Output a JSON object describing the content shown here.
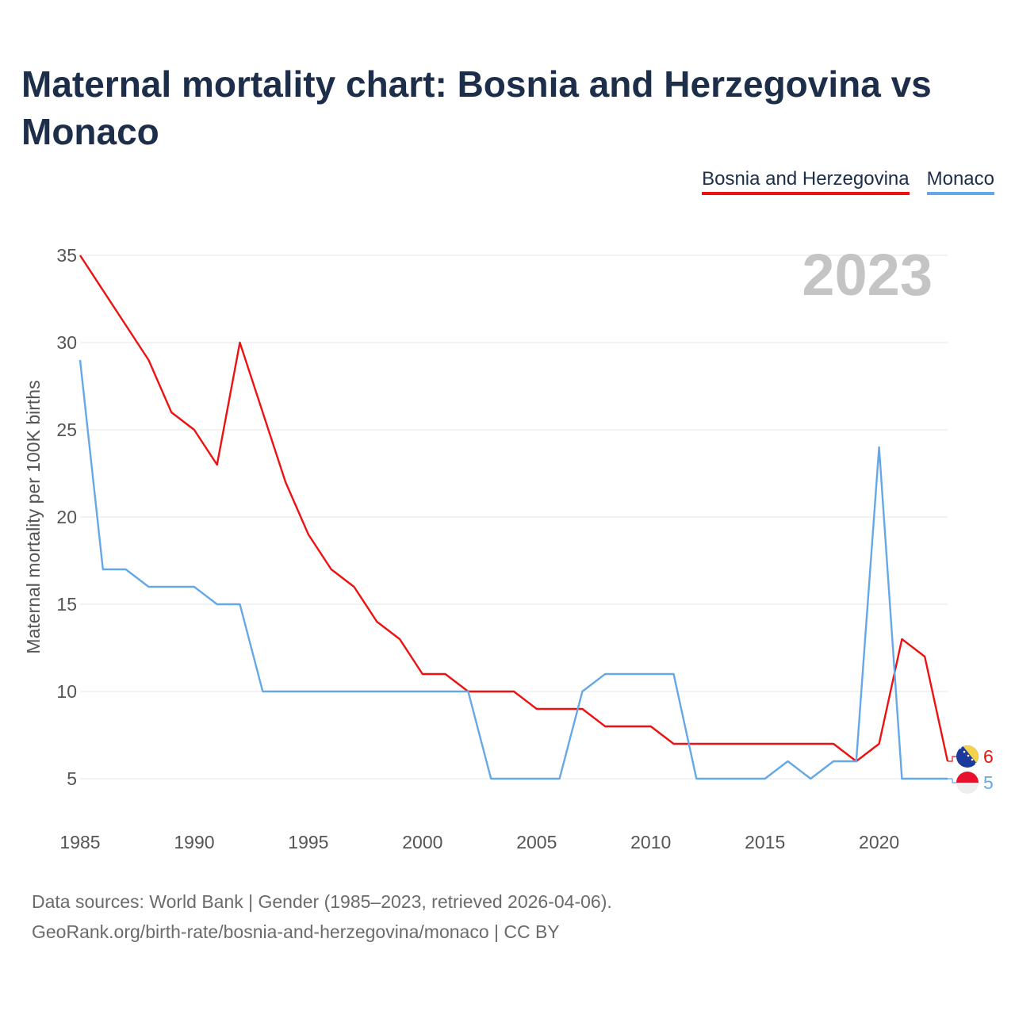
{
  "title": "Maternal mortality chart: Bosnia and Herzegovina vs Monaco",
  "legend": {
    "bih": "Bosnia and Herzegovina",
    "mco": "Monaco"
  },
  "colors": {
    "bih": "#ee1111",
    "mco": "#64a8e8",
    "grid": "#e6e6e6",
    "axis_text": "#555555",
    "year_watermark": "#c4c4c4"
  },
  "footer": {
    "line1": "Data sources: World Bank | Gender (1985–2023, retrieved 2026-04-06).",
    "line2": "GeoRank.org/birth-rate/bosnia-and-herzegovina/monaco | CC BY"
  },
  "chart_data": {
    "type": "line",
    "title": "Maternal mortality chart: Bosnia and Herzegovina vs Monaco",
    "ylabel": "Maternal mortality per 100K births",
    "xlabel": "",
    "year_label": "2023",
    "x": [
      1985,
      1986,
      1987,
      1988,
      1989,
      1990,
      1991,
      1992,
      1993,
      1994,
      1995,
      1996,
      1997,
      1998,
      1999,
      2000,
      2001,
      2002,
      2003,
      2004,
      2005,
      2006,
      2007,
      2008,
      2009,
      2010,
      2011,
      2012,
      2013,
      2014,
      2015,
      2016,
      2017,
      2018,
      2019,
      2020,
      2021,
      2022,
      2023
    ],
    "xlim": [
      1985,
      2023
    ],
    "ylim": [
      3,
      36
    ],
    "xticks": [
      1985,
      1990,
      1995,
      2000,
      2005,
      2010,
      2015,
      2020
    ],
    "yticks": [
      5,
      10,
      15,
      20,
      25,
      30,
      35
    ],
    "series": [
      {
        "name": "Bosnia and Herzegovina",
        "key": "bih",
        "end_label": "6",
        "values": [
          35,
          33,
          31,
          29,
          26,
          25,
          23,
          30,
          26,
          22,
          19,
          17,
          16,
          14,
          13,
          11,
          11,
          10,
          10,
          10,
          9,
          9,
          9,
          8,
          8,
          8,
          7,
          7,
          7,
          7,
          7,
          7,
          7,
          7,
          6,
          7,
          13,
          12,
          6
        ]
      },
      {
        "name": "Monaco",
        "key": "mco",
        "end_label": "5",
        "values": [
          29,
          17,
          17,
          16,
          16,
          16,
          15,
          15,
          10,
          10,
          10,
          10,
          10,
          10,
          10,
          10,
          10,
          10,
          5,
          5,
          5,
          5,
          10,
          11,
          11,
          11,
          11,
          5,
          5,
          5,
          5,
          6,
          5,
          6,
          6,
          24,
          5,
          5,
          5
        ]
      }
    ]
  }
}
